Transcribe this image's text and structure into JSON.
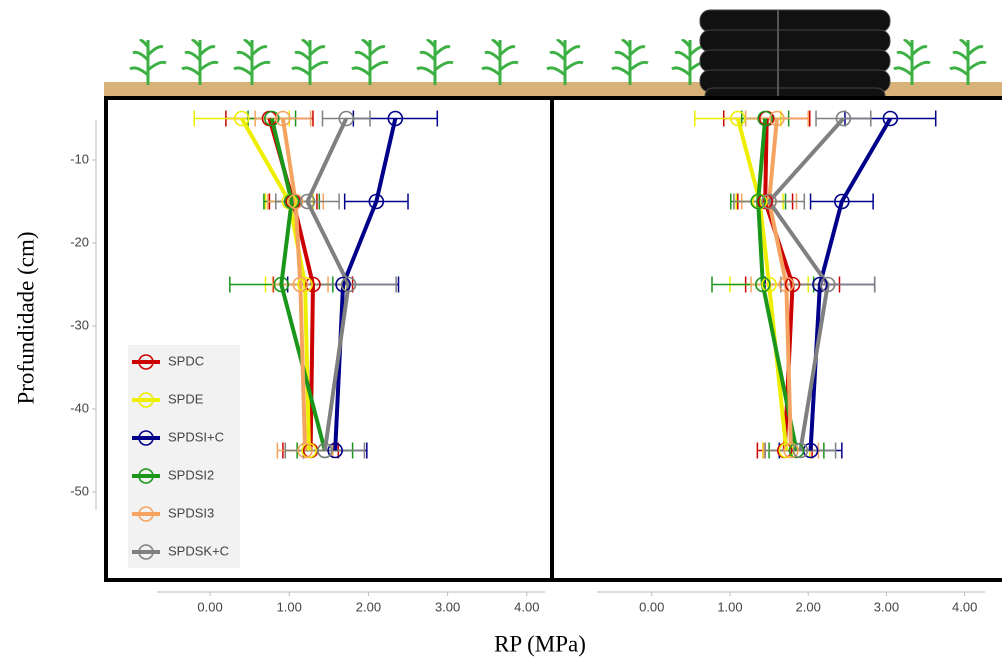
{
  "chart_data": [
    {
      "type": "line",
      "y_label": "Profundidade (cm)",
      "x_label": "RP (MPa)",
      "y": [
        -5,
        -15,
        -25,
        -45
      ],
      "ylim": [
        -2.5,
        -60
      ],
      "yticks": [
        -10,
        -20,
        -30,
        -40,
        -50
      ],
      "xlim": [
        -0.67,
        4.23
      ],
      "xticks": [
        {
          "value": 0,
          "label": "0.00"
        },
        {
          "value": 1,
          "label": "1.00"
        },
        {
          "value": 2,
          "label": "2.00"
        },
        {
          "value": 3,
          "label": "3.00"
        },
        {
          "value": 4,
          "label": "4.00"
        }
      ],
      "series": [
        {
          "name": "SPDC",
          "color": "#cc0000",
          "values": [
            0.75,
            1.05,
            1.3,
            1.27
          ],
          "errors": [
            0.55,
            0.3,
            0.5,
            0.35
          ]
        },
        {
          "name": "SPDE",
          "color": "#eeee00",
          "values": [
            0.4,
            1.0,
            1.2,
            1.25
          ],
          "errors": [
            0.6,
            0.3,
            0.5,
            0.3
          ]
        },
        {
          "name": "SPDSI+C",
          "color": "#00008b",
          "values": [
            2.34,
            2.1,
            1.68,
            1.58
          ],
          "errors": [
            0.53,
            0.4,
            0.7,
            0.4
          ]
        },
        {
          "name": "SPDSI2",
          "color": "#1a961a",
          "values": [
            0.78,
            1.03,
            0.9,
            1.45
          ],
          "errors": [
            0.3,
            0.35,
            0.65,
            0.35
          ]
        },
        {
          "name": "SPDSI3",
          "color": "#f4a460",
          "values": [
            0.92,
            1.08,
            1.14,
            1.2
          ],
          "errors": [
            0.35,
            0.35,
            0.35,
            0.35
          ]
        },
        {
          "name": "SPDSK+C",
          "color": "#808080",
          "values": [
            1.72,
            1.23,
            1.75,
            1.45
          ],
          "errors": [
            0.3,
            0.4,
            0.6,
            0.5
          ]
        }
      ]
    },
    {
      "type": "line",
      "y": [
        -5,
        -15,
        -25,
        -45
      ],
      "ylim": [
        -2.5,
        -60
      ],
      "xlim": [
        -0.7,
        4.26
      ],
      "xticks": [
        {
          "value": 0,
          "label": "0.00"
        },
        {
          "value": 1,
          "label": "1.00"
        },
        {
          "value": 2,
          "label": "2.00"
        },
        {
          "value": 3,
          "label": "3.00"
        },
        {
          "value": 4,
          "label": "4.00"
        }
      ],
      "series": [
        {
          "values": [
            1.47,
            1.45,
            1.8,
            1.7
          ],
          "errors": [
            0.55,
            0.35,
            0.6,
            0.35
          ]
        },
        {
          "values": [
            1.1,
            1.38,
            1.5,
            1.72
          ],
          "errors": [
            0.55,
            0.3,
            0.5,
            0.3
          ]
        },
        {
          "values": [
            3.05,
            2.43,
            2.15,
            2.03
          ],
          "errors": [
            0.58,
            0.4,
            0.7,
            0.4
          ]
        },
        {
          "values": [
            1.45,
            1.36,
            1.42,
            1.85
          ],
          "errors": [
            0.3,
            0.35,
            0.65,
            0.35
          ]
        },
        {
          "values": [
            1.6,
            1.5,
            1.72,
            1.78
          ],
          "errors": [
            0.4,
            0.35,
            0.45,
            0.35
          ]
        },
        {
          "values": [
            2.45,
            1.5,
            2.25,
            1.9
          ],
          "errors": [
            0.35,
            0.45,
            0.6,
            0.45
          ]
        }
      ]
    }
  ]
}
